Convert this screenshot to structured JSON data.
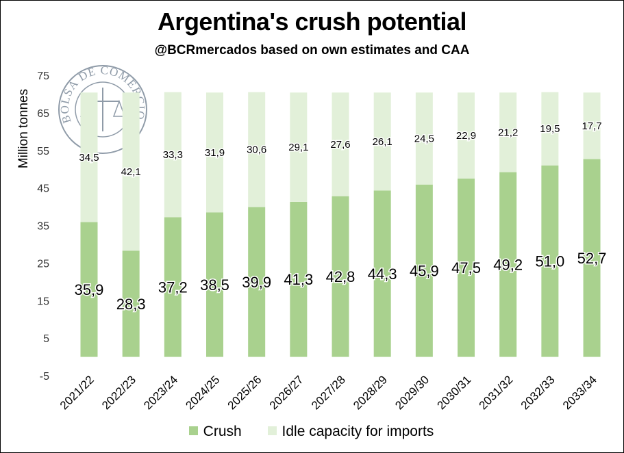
{
  "chart_data": {
    "type": "bar",
    "stacked": true,
    "title": "Argentina's crush potential",
    "subtitle": "@BCRmercados based on own estimates and CAA",
    "ylabel": "Million tonnes",
    "xlabel": "",
    "ylim": [
      -5,
      75
    ],
    "yticks": [
      -5,
      5,
      15,
      25,
      35,
      45,
      55,
      65,
      75
    ],
    "categories": [
      "2021/22",
      "2022/23",
      "2023/24",
      "2024/25",
      "2025/26",
      "2026/27",
      "2027/28",
      "2028/29",
      "2029/30",
      "2030/31",
      "2031/32",
      "2032/33",
      "2033/34"
    ],
    "series": [
      {
        "name": "Crush",
        "color": "#a9d18e",
        "values": [
          35.9,
          28.3,
          37.2,
          38.5,
          39.9,
          41.3,
          42.8,
          44.3,
          45.9,
          47.5,
          49.2,
          51.0,
          52.7
        ],
        "labels": [
          "35,9",
          "28,3",
          "37,2",
          "38,5",
          "39,9",
          "41,3",
          "42,8",
          "44,3",
          "45,9",
          "47,5",
          "49,2",
          "51,0",
          "52,7"
        ]
      },
      {
        "name": "Idle capacity for imports",
        "color": "#e2f0d9",
        "values": [
          34.5,
          42.1,
          33.3,
          31.9,
          30.6,
          29.1,
          27.6,
          26.1,
          24.5,
          22.9,
          21.2,
          19.5,
          17.7
        ],
        "labels": [
          "34,5",
          "42,1",
          "33,3",
          "31,9",
          "30,6",
          "29,1",
          "27,6",
          "26,1",
          "24,5",
          "22,9",
          "21,2",
          "19,5",
          "17,7"
        ]
      }
    ],
    "grid": false,
    "legend_position": "bottom"
  },
  "watermark": {
    "text": "BOLSA DE COMERCIO DE ROSARIO"
  }
}
